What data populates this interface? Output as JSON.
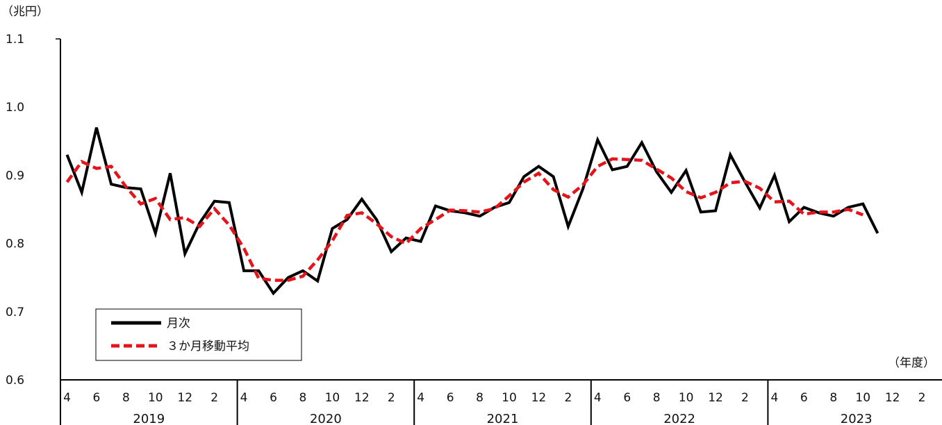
{
  "chart_data": {
    "type": "line",
    "y_unit_label": "（兆円）",
    "x_unit_label": "（年度）",
    "ylim": [
      0.6,
      1.1
    ],
    "yticks": [
      "0.6",
      "0.7",
      "0.8",
      "0.9",
      "1.0",
      "1.1"
    ],
    "month_tick_labels": [
      "4",
      "6",
      "8",
      "10",
      "12",
      "2"
    ],
    "years": [
      "2019",
      "2020",
      "2021",
      "2022",
      "2023"
    ],
    "legend_placement": "lower-left",
    "series": [
      {
        "name": "月次",
        "color": "#000000",
        "style": "solid",
        "values": [
          0.93,
          0.875,
          0.97,
          0.887,
          0.882,
          0.88,
          0.815,
          0.903,
          0.785,
          0.83,
          0.862,
          0.86,
          0.76,
          0.76,
          0.727,
          0.75,
          0.76,
          0.745,
          0.822,
          0.835,
          0.865,
          0.835,
          0.788,
          0.808,
          0.803,
          0.855,
          0.848,
          0.845,
          0.84,
          0.853,
          0.86,
          0.898,
          0.913,
          0.898,
          0.825,
          0.88,
          0.952,
          0.908,
          0.913,
          0.948,
          0.905,
          0.875,
          0.907,
          0.846,
          0.848,
          0.93,
          0.89,
          0.852,
          0.9,
          0.832,
          0.853,
          0.845,
          0.84,
          0.853,
          0.858,
          0.815
        ]
      },
      {
        "name": "３か月移動平均",
        "color": "#e4141b",
        "style": "dashed",
        "values": [
          0.89,
          0.92,
          0.91,
          0.913,
          0.883,
          0.858,
          0.866,
          0.835,
          0.838,
          0.825,
          0.851,
          0.827,
          0.793,
          0.749,
          0.746,
          0.746,
          0.752,
          0.776,
          0.804,
          0.841,
          0.845,
          0.829,
          0.81,
          0.8,
          0.822,
          0.835,
          0.849,
          0.848,
          0.846,
          0.851,
          0.87,
          0.89,
          0.903,
          0.879,
          0.868,
          0.886,
          0.913,
          0.924,
          0.923,
          0.922,
          0.909,
          0.896,
          0.876,
          0.867,
          0.875,
          0.889,
          0.891,
          0.881,
          0.861,
          0.862,
          0.843,
          0.846,
          0.846,
          0.85,
          0.842
        ]
      }
    ]
  }
}
